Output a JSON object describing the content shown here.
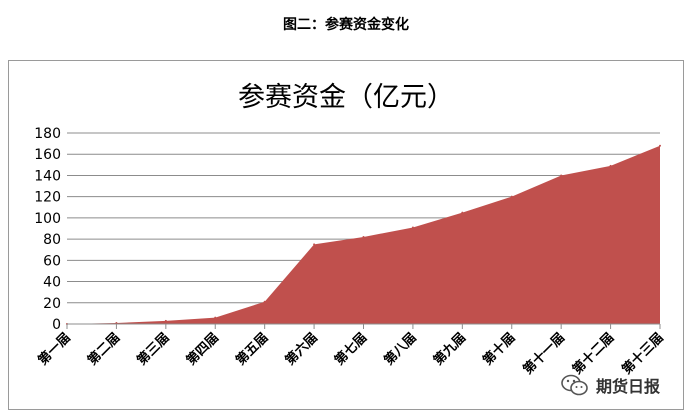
{
  "caption": "图二：参赛资金变化",
  "watermark": {
    "text": "期货日报",
    "icon": "wechat-icon"
  },
  "chart_data": {
    "type": "area",
    "title": "参赛资金（亿元）",
    "xlabel": "",
    "ylabel": "",
    "categories": [
      "第一届",
      "第二届",
      "第三届",
      "第四届",
      "第五届",
      "第六届",
      "第七届",
      "第八届",
      "第九届",
      "第十届",
      "第十一届",
      "第十二届",
      "第十三届"
    ],
    "series": [
      {
        "values": [
          0,
          1,
          3,
          6,
          21,
          75,
          82,
          91,
          105,
          120,
          140,
          149,
          168
        ]
      }
    ],
    "yticks": [
      0,
      20,
      40,
      60,
      80,
      100,
      120,
      140,
      160,
      180
    ],
    "ylim": [
      0,
      180
    ],
    "grid": true,
    "legend": "none",
    "color": "#c0504d"
  }
}
